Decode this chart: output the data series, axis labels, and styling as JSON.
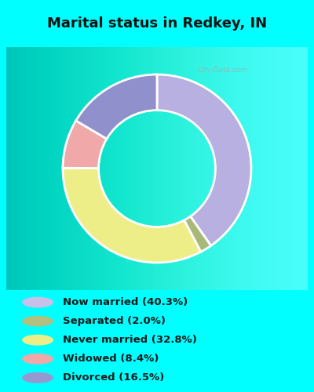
{
  "title": "Marital status in Redkey, IN",
  "title_fontsize": 13,
  "background_color": "#00FFFF",
  "chart_bg_start": "#c8eec8",
  "chart_bg_end": "#f0f8f0",
  "segments": [
    {
      "label": "Now married (40.3%)",
      "value": 40.3,
      "color": "#b8b0e0"
    },
    {
      "label": "Separated (2.0%)",
      "value": 2.0,
      "color": "#a8b878"
    },
    {
      "label": "Never married (32.8%)",
      "value": 32.8,
      "color": "#eeee88"
    },
    {
      "label": "Widowed (8.4%)",
      "value": 8.4,
      "color": "#f0a8a8"
    },
    {
      "label": "Divorced (16.5%)",
      "value": 16.5,
      "color": "#9090cc"
    }
  ],
  "legend_colors": [
    "#c8c0e8",
    "#b0c080",
    "#eeee88",
    "#f0a8a8",
    "#9898d0"
  ],
  "watermark": "City-Data.com",
  "startangle": 90,
  "donut_width": 0.38
}
